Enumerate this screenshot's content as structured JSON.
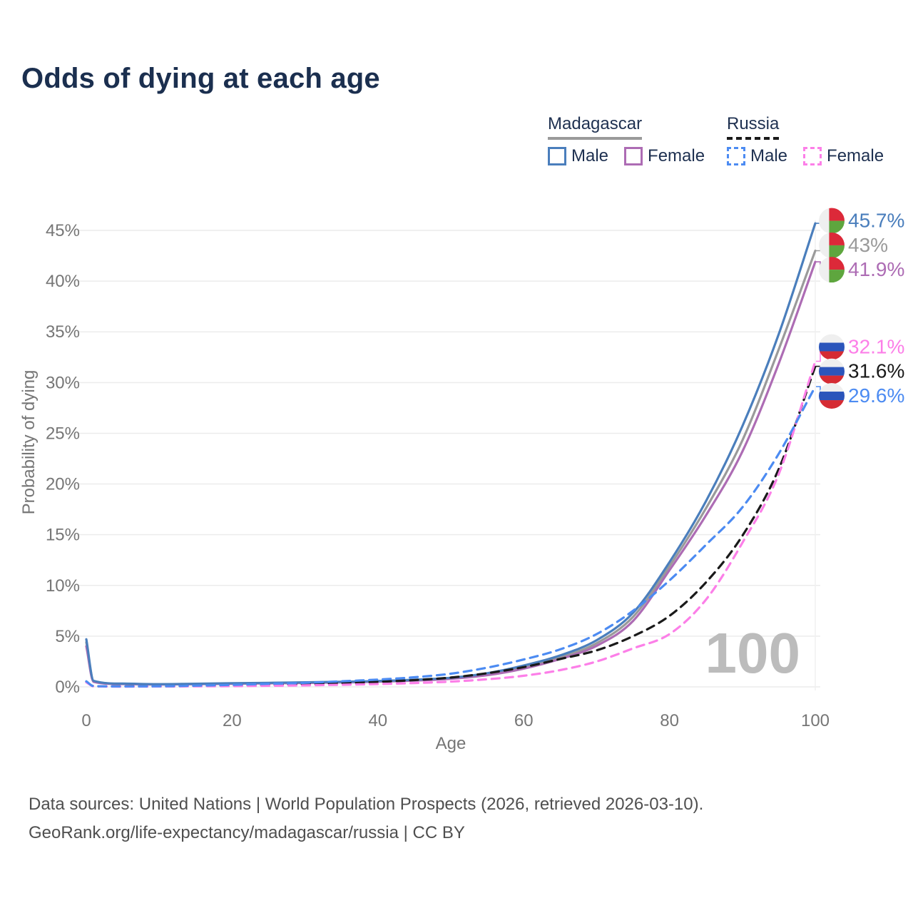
{
  "title": "Odds of dying at each age",
  "legend": {
    "groups": [
      {
        "label": "Madagascar",
        "line_style": "solid",
        "underline_color": "#9a9a9a",
        "items": [
          {
            "label": "Male",
            "color": "#4a7ebc"
          },
          {
            "label": "Female",
            "color": "#ad6cb4"
          }
        ]
      },
      {
        "label": "Russia",
        "line_style": "dashed",
        "underline_color": "#1a1a1a",
        "items": [
          {
            "label": "Male",
            "color": "#4c8bf2"
          },
          {
            "label": "Female",
            "color": "#fc7fe8"
          }
        ]
      }
    ]
  },
  "chart_data": {
    "type": "line",
    "title": "Odds of dying at each age",
    "xlabel": "Age",
    "ylabel": "Probability of dying",
    "xlim": [
      0,
      100
    ],
    "ylim": [
      0,
      46
    ],
    "x_ticks": [
      0,
      20,
      40,
      60,
      80,
      100
    ],
    "y_ticks": [
      0,
      5,
      10,
      15,
      20,
      25,
      30,
      35,
      40,
      45
    ],
    "y_tick_labels": [
      "0%",
      "5%",
      "10%",
      "15%",
      "20%",
      "25%",
      "30%",
      "35%",
      "40%",
      "45%"
    ],
    "grid": "horizontal",
    "legend_position": "top-right",
    "watermark": "100",
    "ages": [
      0,
      1,
      5,
      10,
      15,
      20,
      25,
      30,
      35,
      40,
      45,
      50,
      55,
      60,
      65,
      70,
      75,
      80,
      85,
      90,
      95,
      100
    ],
    "series": [
      {
        "name": "Madagascar Male",
        "country": "Madagascar",
        "sex": "Male",
        "color": "#4a7ebc",
        "dashed": false,
        "flag": "madagascar",
        "end_label": "45.7%",
        "values": [
          4.7,
          0.6,
          0.32,
          0.27,
          0.31,
          0.36,
          0.4,
          0.45,
          0.5,
          0.58,
          0.7,
          0.9,
          1.35,
          2.1,
          3.1,
          4.6,
          7.3,
          12.3,
          18.3,
          25.7,
          34.8,
          45.7
        ]
      },
      {
        "name": "Madagascar Both sexes",
        "country": "Madagascar",
        "sex": "Both",
        "color": "#9a9a9a",
        "dashed": false,
        "flag": "madagascar",
        "end_label": "43%",
        "values": [
          4.4,
          0.55,
          0.3,
          0.25,
          0.29,
          0.33,
          0.37,
          0.42,
          0.47,
          0.55,
          0.66,
          0.85,
          1.25,
          1.95,
          2.9,
          4.3,
          6.9,
          11.9,
          17.6,
          24.3,
          33.3,
          43.0
        ]
      },
      {
        "name": "Madagascar Female",
        "country": "Madagascar",
        "sex": "Female",
        "color": "#ad6cb4",
        "dashed": false,
        "flag": "madagascar",
        "end_label": "41.9%",
        "values": [
          4.0,
          0.5,
          0.28,
          0.23,
          0.27,
          0.31,
          0.35,
          0.39,
          0.44,
          0.51,
          0.62,
          0.8,
          1.15,
          1.8,
          2.75,
          4.05,
          6.5,
          11.5,
          16.9,
          23.2,
          31.9,
          41.9
        ]
      },
      {
        "name": "Russia Female",
        "country": "Russia",
        "sex": "Female",
        "color": "#fc7fe8",
        "dashed": true,
        "flag": "russia",
        "end_label": "32.1%",
        "values": [
          0.45,
          0.06,
          0.03,
          0.04,
          0.06,
          0.08,
          0.11,
          0.15,
          0.21,
          0.28,
          0.38,
          0.52,
          0.75,
          1.1,
          1.65,
          2.5,
          3.8,
          5.2,
          8.6,
          14.2,
          21.0,
          32.1
        ]
      },
      {
        "name": "Russia Both sexes",
        "country": "Russia",
        "sex": "Both",
        "color": "#1a1a1a",
        "dashed": true,
        "flag": "russia",
        "end_label": "31.6%",
        "values": [
          0.5,
          0.07,
          0.04,
          0.05,
          0.09,
          0.14,
          0.2,
          0.28,
          0.38,
          0.5,
          0.67,
          0.92,
          1.35,
          1.95,
          2.75,
          3.6,
          5.0,
          7.0,
          10.3,
          14.9,
          21.5,
          31.6
        ]
      },
      {
        "name": "Russia Male",
        "country": "Russia",
        "sex": "Male",
        "color": "#4c8bf2",
        "dashed": true,
        "flag": "russia",
        "end_label": "29.6%",
        "values": [
          0.55,
          0.08,
          0.05,
          0.06,
          0.12,
          0.2,
          0.3,
          0.4,
          0.55,
          0.72,
          0.95,
          1.3,
          1.9,
          2.7,
          3.7,
          5.2,
          7.5,
          10.5,
          14.0,
          17.7,
          23.0,
          29.6
        ]
      }
    ],
    "flag_colors": {
      "madagascar": {
        "white": "#efefef",
        "red": "#dc2939",
        "green": "#5ea63e"
      },
      "russia": {
        "white": "#efefef",
        "blue": "#2b55bb",
        "red": "#d52b33"
      }
    }
  },
  "footer": {
    "line1": "Data sources: United Nations | World Population Prospects (2026, retrieved 2026-03-10).",
    "line2": "GeoRank.org/life-expectancy/madagascar/russia | CC BY"
  }
}
